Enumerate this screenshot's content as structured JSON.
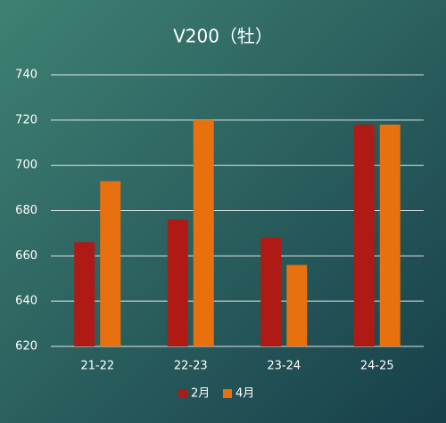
{
  "chart_data": {
    "type": "bar",
    "title": "V200（牡）",
    "categories": [
      "21-22",
      "22-23",
      "23-24",
      "24-25"
    ],
    "series": [
      {
        "name": "2月",
        "color": "#b01a14",
        "values": [
          666,
          676,
          668,
          718
        ]
      },
      {
        "name": "4月",
        "color": "#e8700f",
        "values": [
          693,
          720,
          656,
          718
        ]
      }
    ],
    "ylim": [
      620,
      740
    ],
    "yticks": [
      620,
      640,
      660,
      680,
      700,
      720,
      740
    ],
    "grid": true,
    "legend": "bottom"
  }
}
